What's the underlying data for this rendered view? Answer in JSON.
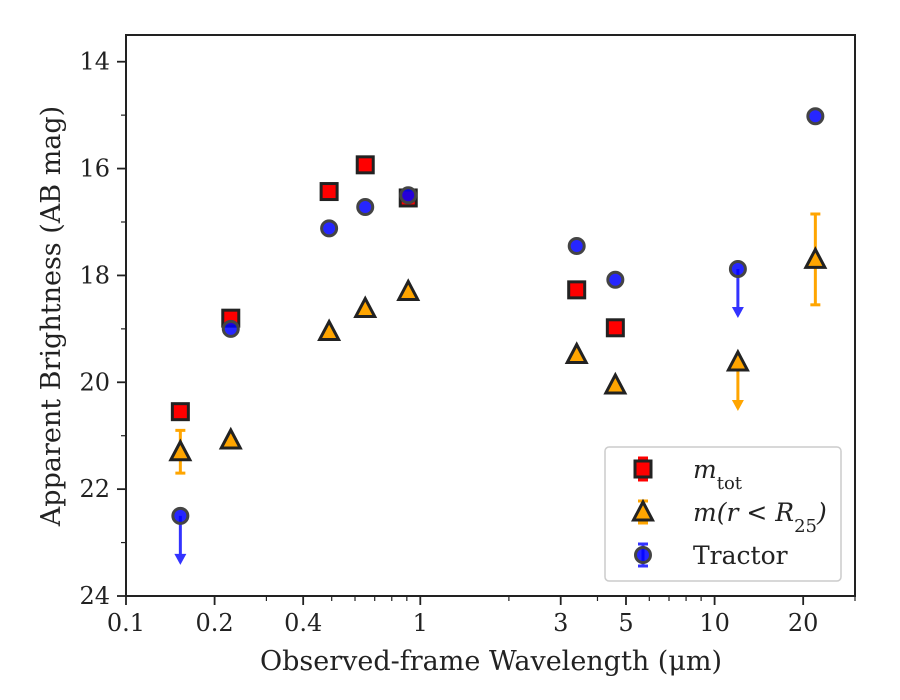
{
  "chart_data": {
    "type": "scatter",
    "title": "",
    "xlabel": "Observed-frame Wavelength (μm)",
    "ylabel": "Apparent Brightness (AB mag)",
    "xscale": "log",
    "xlim": [
      0.1,
      30
    ],
    "ylim": [
      24,
      13.5
    ],
    "y_inverted": true,
    "grid": false,
    "legend_position": "lower right",
    "xticks": [
      {
        "value": 0.1,
        "label": "0.1"
      },
      {
        "value": 0.2,
        "label": "0.2"
      },
      {
        "value": 0.4,
        "label": "0.4"
      },
      {
        "value": 1,
        "label": "1"
      },
      {
        "value": 3,
        "label": "3"
      },
      {
        "value": 5,
        "label": "5"
      },
      {
        "value": 10,
        "label": "10"
      },
      {
        "value": 20,
        "label": "20"
      }
    ],
    "yticks": [
      {
        "value": 14,
        "label": "14"
      },
      {
        "value": 16,
        "label": "16"
      },
      {
        "value": 18,
        "label": "18"
      },
      {
        "value": 20,
        "label": "20"
      },
      {
        "value": 22,
        "label": "22"
      },
      {
        "value": 24,
        "label": "24"
      }
    ],
    "series": [
      {
        "name": "m_tot",
        "legend_label": "m",
        "legend_sub": "tot",
        "marker": "square",
        "color": "#ff0000",
        "error_color": "#ff0000",
        "points": [
          {
            "x": 0.153,
            "y": 20.55
          },
          {
            "x": 0.227,
            "y": 18.8
          },
          {
            "x": 0.49,
            "y": 16.43
          },
          {
            "x": 0.65,
            "y": 15.93
          },
          {
            "x": 0.91,
            "y": 16.55
          },
          {
            "x": 3.4,
            "y": 18.27
          },
          {
            "x": 4.6,
            "y": 18.98
          }
        ]
      },
      {
        "name": "m(r < R25)",
        "legend_label": "m(r < R",
        "legend_sub": "25",
        "legend_tail": ")",
        "marker": "triangle",
        "color": "#ffa500",
        "error_color": "#ffa500",
        "points": [
          {
            "x": 0.153,
            "y": 21.3,
            "yerr": 0.4
          },
          {
            "x": 0.227,
            "y": 21.08
          },
          {
            "x": 0.49,
            "y": 19.05
          },
          {
            "x": 0.65,
            "y": 18.62
          },
          {
            "x": 0.91,
            "y": 18.3
          },
          {
            "x": 3.4,
            "y": 19.48
          },
          {
            "x": 4.6,
            "y": 20.05
          },
          {
            "x": 12,
            "y": 19.62,
            "upper_limit": true
          },
          {
            "x": 22,
            "y": 17.7,
            "yerr": 0.85
          }
        ]
      },
      {
        "name": "Tractor",
        "legend_label": "Tractor",
        "marker": "circle",
        "color": "#0000ff",
        "error_color": "#3333ff",
        "points": [
          {
            "x": 0.153,
            "y": 22.5,
            "upper_limit": true
          },
          {
            "x": 0.227,
            "y": 19.0
          },
          {
            "x": 0.49,
            "y": 17.12
          },
          {
            "x": 0.65,
            "y": 16.72
          },
          {
            "x": 0.91,
            "y": 16.5
          },
          {
            "x": 3.4,
            "y": 17.45
          },
          {
            "x": 4.6,
            "y": 18.08
          },
          {
            "x": 12,
            "y": 17.88,
            "upper_limit": true
          },
          {
            "x": 22,
            "y": 15.02
          }
        ]
      }
    ]
  }
}
